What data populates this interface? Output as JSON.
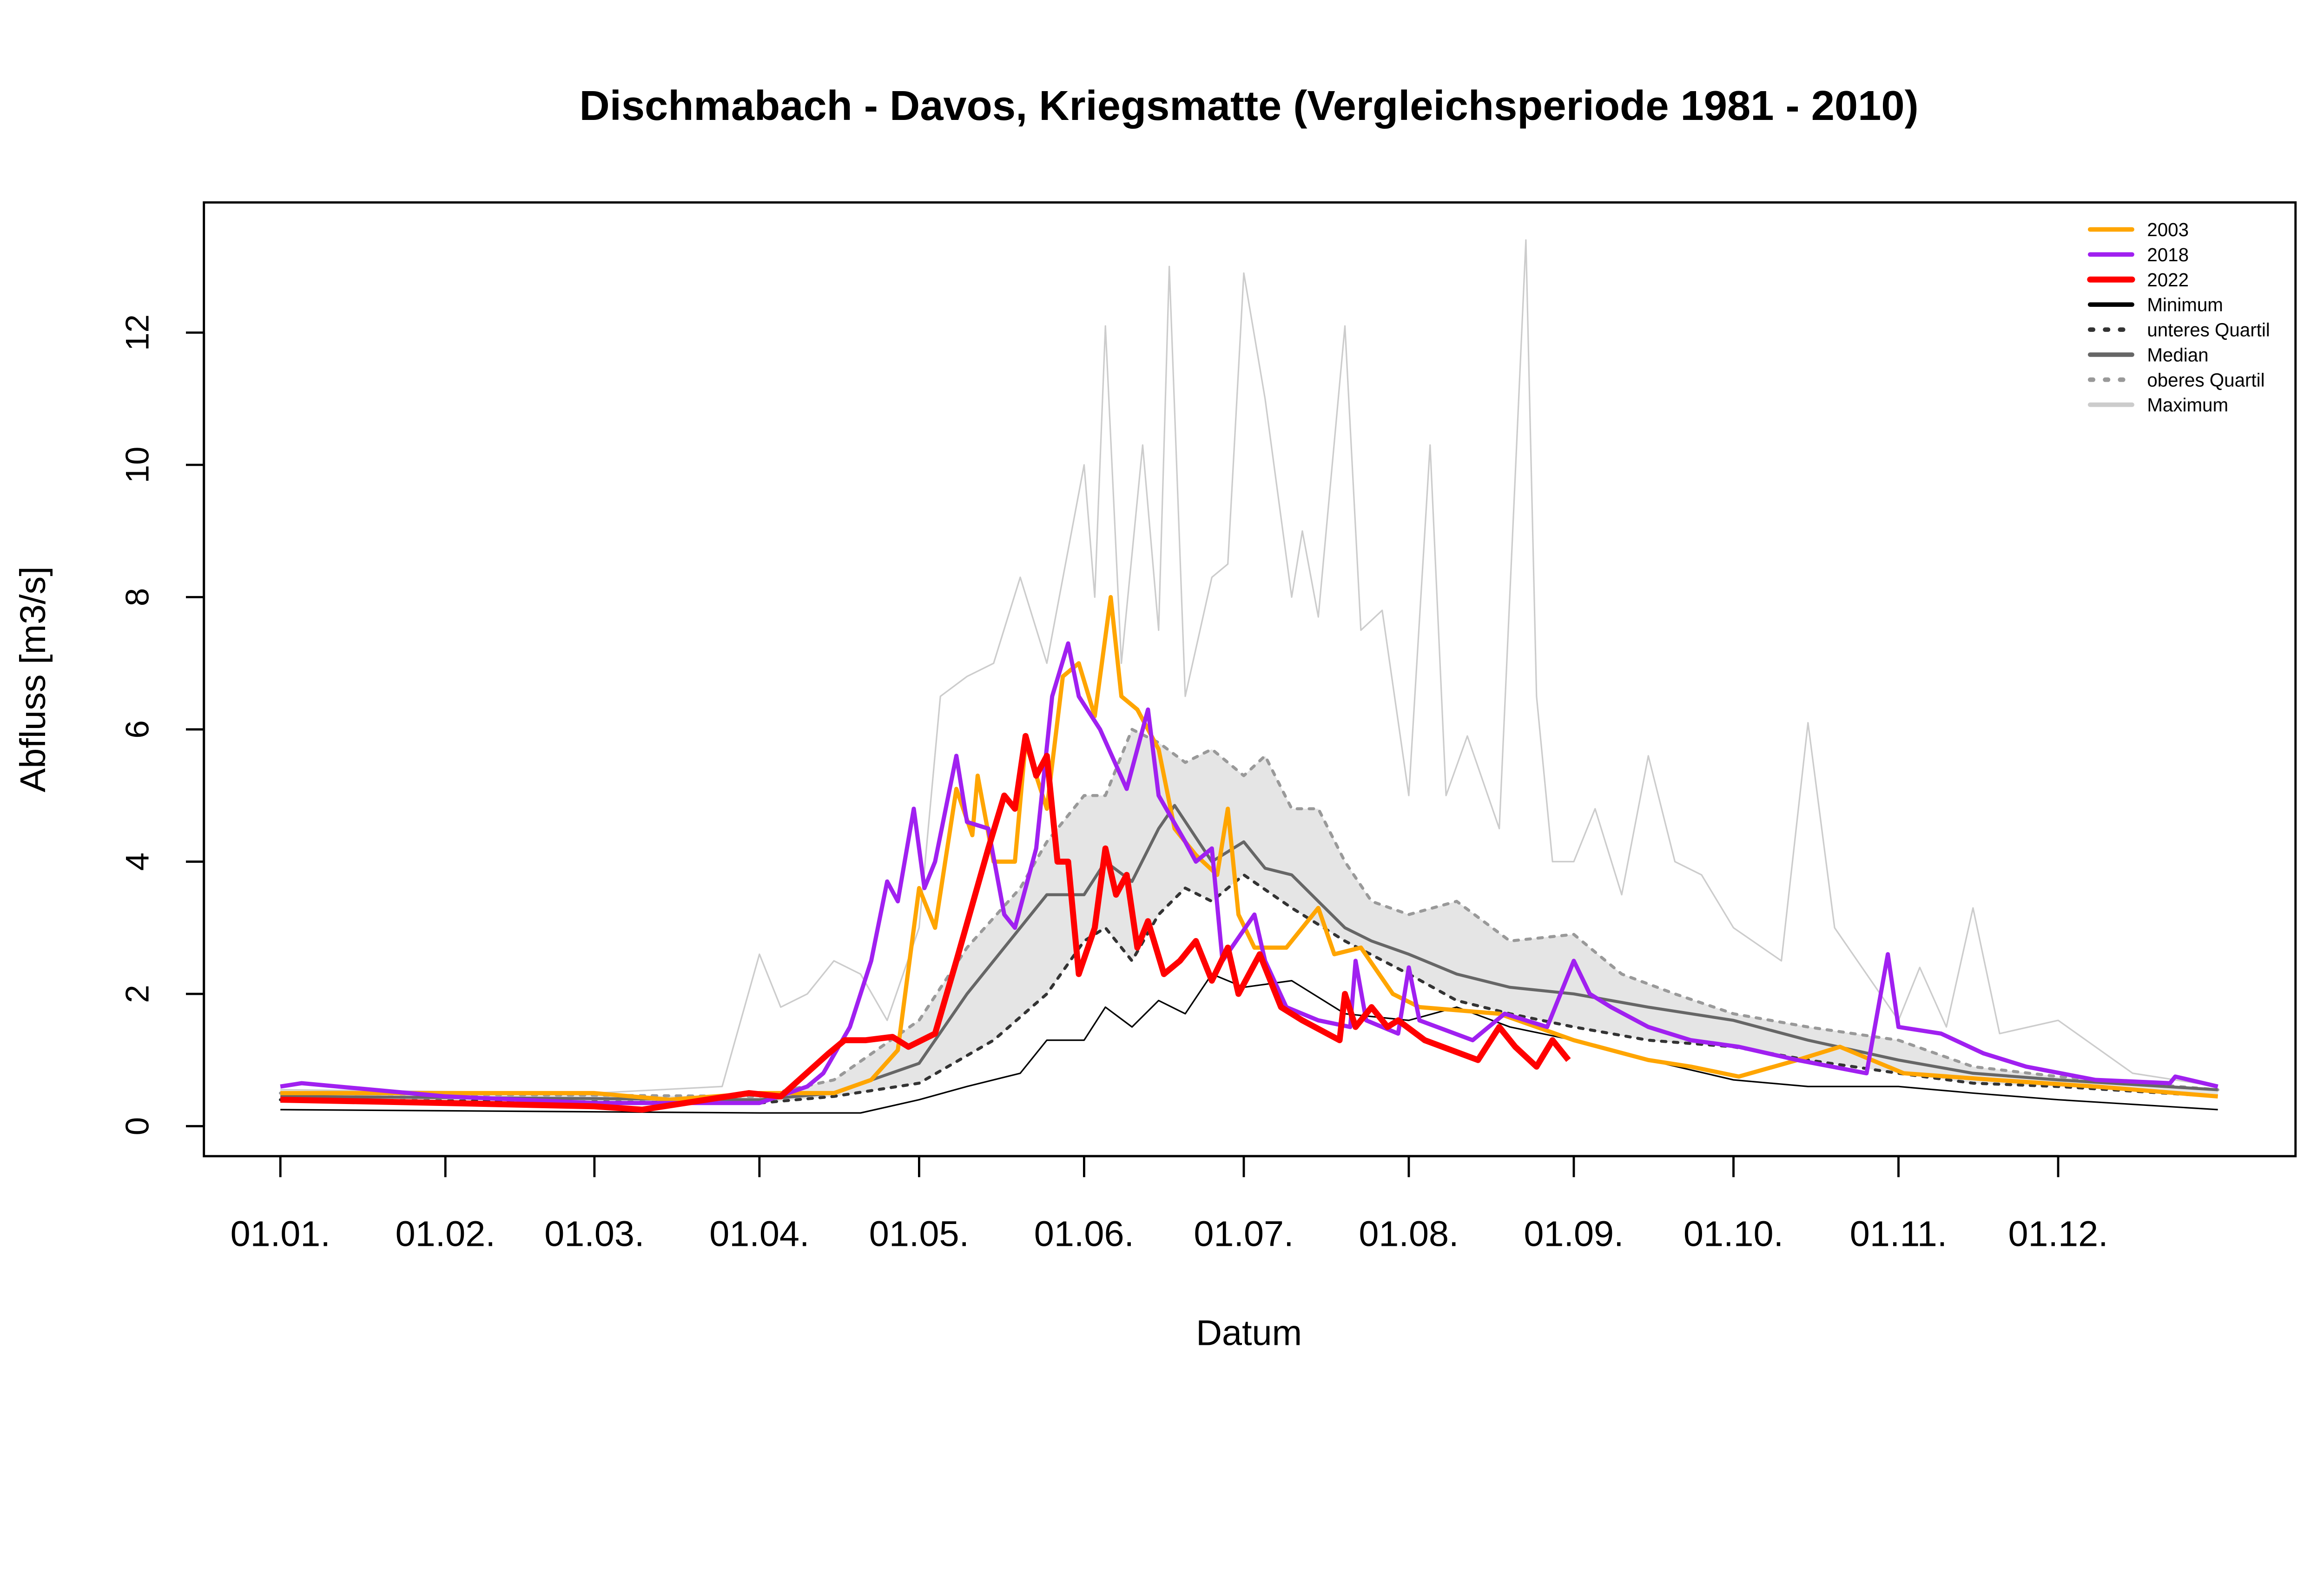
{
  "chart_data": {
    "type": "line",
    "title": "Dischmabach - Davos, Kriegsmatte (Vergleichsperiode 1981 - 2010)",
    "xlabel": "Datum",
    "ylabel": "Abfluss [m3/s]",
    "ylim": [
      0,
      13.5
    ],
    "yticks": [
      "0",
      "2",
      "4",
      "6",
      "8",
      "10",
      "12"
    ],
    "xticks": [
      "01.01.",
      "01.02.",
      "01.03.",
      "01.04.",
      "01.05.",
      "01.06.",
      "01.07.",
      "01.08.",
      "01.09.",
      "01.10.",
      "01.11.",
      "01.12."
    ],
    "grid": false,
    "legend_position": "top-right",
    "band": {
      "between": [
        "unteres Quartil",
        "oberes Quartil"
      ],
      "color": "#e5e5e5"
    },
    "series": [
      {
        "name": "Maximum",
        "color": "#cccccc",
        "dash": "solid",
        "x": [
          "01.01.",
          "01.03.",
          "25.03.",
          "01.04.",
          "05.04.",
          "10.04.",
          "15.04.",
          "20.04.",
          "25.04.",
          "01.05.",
          "05.05.",
          "10.05.",
          "15.05.",
          "20.05.",
          "25.05.",
          "01.06.",
          "03.06.",
          "05.06.",
          "08.06.",
          "12.06.",
          "15.06.",
          "17.06.",
          "20.06.",
          "25.06.",
          "28.06.",
          "01.07.",
          "05.07.",
          "10.07.",
          "12.07.",
          "15.07.",
          "20.07.",
          "23.07.",
          "27.07.",
          "01.08.",
          "05.08.",
          "08.08.",
          "12.08.",
          "18.08.",
          "23.08.",
          "25.08.",
          "28.08.",
          "01.09.",
          "05.09.",
          "10.09.",
          "15.09.",
          "20.09.",
          "25.09.",
          "01.10.",
          "10.10.",
          "15.10.",
          "20.10.",
          "01.11.",
          "05.11.",
          "10.11.",
          "15.11.",
          "20.11.",
          "01.12.",
          "15.12.",
          "31.12."
        ],
        "y": [
          0.55,
          0.5,
          0.6,
          2.6,
          1.8,
          2.0,
          2.5,
          2.3,
          1.6,
          3.0,
          6.5,
          6.8,
          7.0,
          8.3,
          7.0,
          10.0,
          8.0,
          12.1,
          7.0,
          10.3,
          7.5,
          13.0,
          6.5,
          8.3,
          8.5,
          12.9,
          11.0,
          8.0,
          9.0,
          7.7,
          12.1,
          7.5,
          7.8,
          5.0,
          10.3,
          5.0,
          5.9,
          4.5,
          13.4,
          6.5,
          4.0,
          4.0,
          4.8,
          3.5,
          5.6,
          4.0,
          3.8,
          3.0,
          2.5,
          6.1,
          3.0,
          1.6,
          2.4,
          1.5,
          3.3,
          1.4,
          1.6,
          0.8,
          0.6
        ]
      },
      {
        "name": "oberes Quartil",
        "color": "#999999",
        "dash": "dotted",
        "x": [
          "01.01.",
          "01.04.",
          "15.04.",
          "01.05.",
          "10.05.",
          "20.05.",
          "25.05.",
          "01.06.",
          "05.06.",
          "10.06.",
          "15.06.",
          "20.06.",
          "25.06.",
          "01.07.",
          "05.07.",
          "10.07.",
          "15.07.",
          "20.07.",
          "25.07.",
          "01.08.",
          "10.08.",
          "20.08.",
          "01.09.",
          "10.09.",
          "20.09.",
          "01.10.",
          "15.10.",
          "01.11.",
          "15.11.",
          "01.12.",
          "31.12."
        ],
        "y": [
          0.5,
          0.45,
          0.7,
          1.6,
          2.7,
          3.6,
          4.3,
          5.0,
          5.0,
          6.0,
          5.8,
          5.5,
          5.7,
          5.3,
          5.6,
          4.8,
          4.8,
          4.0,
          3.4,
          3.2,
          3.4,
          2.8,
          2.9,
          2.3,
          2.0,
          1.7,
          1.5,
          1.3,
          0.9,
          0.75,
          0.55
        ]
      },
      {
        "name": "unteres Quartil",
        "color": "#333333",
        "dash": "dotted",
        "x": [
          "01.01.",
          "01.04.",
          "15.04.",
          "01.05.",
          "15.05.",
          "25.05.",
          "01.06.",
          "05.06.",
          "10.06.",
          "15.06.",
          "20.06.",
          "25.06.",
          "01.07.",
          "10.07.",
          "20.07.",
          "01.08.",
          "10.08.",
          "20.08.",
          "01.09.",
          "15.09.",
          "01.10.",
          "15.10.",
          "01.11.",
          "15.11.",
          "01.12.",
          "31.12."
        ],
        "y": [
          0.4,
          0.35,
          0.45,
          0.65,
          1.3,
          2.0,
          2.8,
          3.0,
          2.5,
          3.2,
          3.6,
          3.4,
          3.8,
          3.3,
          2.8,
          2.3,
          1.9,
          1.7,
          1.5,
          1.3,
          1.2,
          1.0,
          0.8,
          0.65,
          0.6,
          0.45
        ]
      },
      {
        "name": "Median",
        "color": "#666666",
        "dash": "solid",
        "x": [
          "01.01.",
          "01.04.",
          "15.04.",
          "01.05.",
          "10.05.",
          "20.05.",
          "25.05.",
          "01.06.",
          "05.06.",
          "10.06.",
          "15.06.",
          "18.06.",
          "25.06.",
          "01.07.",
          "05.07.",
          "10.07.",
          "15.07.",
          "20.07.",
          "25.07.",
          "01.08.",
          "10.08.",
          "20.08.",
          "01.09.",
          "15.09.",
          "01.10.",
          "15.10.",
          "01.11.",
          "15.11.",
          "01.12.",
          "31.12."
        ],
        "y": [
          0.45,
          0.4,
          0.5,
          0.95,
          2.0,
          3.0,
          3.5,
          3.5,
          4.0,
          3.7,
          4.5,
          4.85,
          4.0,
          4.3,
          3.9,
          3.8,
          3.4,
          3.0,
          2.8,
          2.6,
          2.3,
          2.1,
          2.0,
          1.8,
          1.6,
          1.3,
          1.0,
          0.8,
          0.7,
          0.55
        ]
      },
      {
        "name": "Minimum",
        "color": "#000000",
        "dash": "solid",
        "x": [
          "01.01.",
          "01.04.",
          "20.04.",
          "01.05.",
          "10.05.",
          "20.05.",
          "25.05.",
          "01.06.",
          "05.06.",
          "10.06.",
          "15.06.",
          "20.06.",
          "25.06.",
          "01.07.",
          "10.07.",
          "20.07.",
          "01.08.",
          "10.08.",
          "20.08.",
          "01.09.",
          "15.09.",
          "01.10.",
          "15.10.",
          "01.11.",
          "15.11.",
          "01.12.",
          "31.12."
        ],
        "y": [
          0.25,
          0.2,
          0.2,
          0.4,
          0.6,
          0.8,
          1.3,
          1.3,
          1.8,
          1.5,
          1.9,
          1.7,
          2.3,
          2.1,
          2.2,
          1.7,
          1.6,
          1.8,
          1.5,
          1.3,
          1.0,
          0.7,
          0.6,
          0.6,
          0.5,
          0.4,
          0.25
        ]
      },
      {
        "name": "2003",
        "color": "#ffa500",
        "dash": "solid",
        "x": [
          "01.01.",
          "01.02.",
          "01.03.",
          "15.03.",
          "01.04.",
          "15.04.",
          "22.04.",
          "27.04.",
          "01.05.",
          "04.05.",
          "08.05.",
          "11.05.",
          "12.05.",
          "15.05.",
          "19.05.",
          "21.05.",
          "25.05.",
          "28.05.",
          "31.05.",
          "03.06.",
          "06.06.",
          "08.06.",
          "11.06.",
          "15.06.",
          "18.06.",
          "22.06.",
          "26.06.",
          "28.06.",
          "30.06.",
          "03.07.",
          "09.07.",
          "15.07.",
          "18.07.",
          "23.07.",
          "29.07.",
          "03.08.",
          "18.08.",
          "01.09.",
          "15.09.",
          "23.09.",
          "02.10.",
          "13.10.",
          "21.10.",
          "02.11.",
          "19.11.",
          "08.12.",
          "31.12."
        ],
        "y": [
          0.5,
          0.5,
          0.5,
          0.4,
          0.5,
          0.5,
          0.7,
          1.15,
          3.6,
          3.0,
          5.1,
          4.4,
          5.3,
          4.0,
          4.0,
          5.8,
          4.8,
          6.8,
          7.0,
          6.2,
          8.0,
          6.5,
          6.3,
          5.7,
          4.5,
          4.1,
          3.8,
          4.8,
          3.2,
          2.7,
          2.7,
          3.3,
          2.6,
          2.7,
          2.0,
          1.8,
          1.7,
          1.3,
          1.0,
          0.9,
          0.75,
          1.0,
          1.2,
          0.8,
          0.7,
          0.6,
          0.45
        ]
      },
      {
        "name": "2018",
        "color": "#a020f0",
        "dash": "solid",
        "x": [
          "01.01.",
          "05.01.",
          "01.02.",
          "01.03.",
          "01.04.",
          "10.04.",
          "13.04.",
          "18.04.",
          "22.04.",
          "25.04.",
          "27.04.",
          "30.04.",
          "02.05.",
          "04.05.",
          "08.05.",
          "10.05.",
          "14.05.",
          "17.05.",
          "19.05.",
          "23.05.",
          "26.05.",
          "29.05.",
          "31.05.",
          "04.06.",
          "09.06.",
          "13.06.",
          "15.06.",
          "20.06.",
          "22.06.",
          "25.06.",
          "27.06.",
          "03.07.",
          "05.07.",
          "09.07.",
          "15.07.",
          "21.07.",
          "22.07.",
          "24.07.",
          "30.07.",
          "01.08.",
          "03.08.",
          "13.08.",
          "19.08.",
          "27.08.",
          "01.09.",
          "04.09.",
          "08.09.",
          "15.09.",
          "23.09.",
          "02.10.",
          "13.10.",
          "26.10.",
          "30.10.",
          "01.11.",
          "09.11.",
          "17.11.",
          "25.11.",
          "08.12.",
          "22.12.",
          "23.12.",
          "31.12."
        ],
        "y": [
          0.6,
          0.65,
          0.45,
          0.35,
          0.35,
          0.6,
          0.8,
          1.5,
          2.5,
          3.7,
          3.4,
          4.8,
          3.6,
          4.0,
          5.6,
          4.6,
          4.5,
          3.2,
          3.0,
          4.2,
          6.5,
          7.3,
          6.5,
          6.0,
          5.1,
          6.3,
          5.0,
          4.3,
          4.0,
          4.2,
          2.5,
          3.2,
          2.5,
          1.8,
          1.6,
          1.5,
          2.5,
          1.6,
          1.4,
          2.4,
          1.6,
          1.3,
          1.7,
          1.5,
          2.5,
          2.0,
          1.8,
          1.5,
          1.3,
          1.2,
          1.0,
          0.8,
          2.6,
          1.5,
          1.4,
          1.1,
          0.9,
          0.7,
          0.65,
          0.75,
          0.6
        ]
      },
      {
        "name": "2022",
        "color": "#ff0000",
        "dash": "solid",
        "x": [
          "01.01.",
          "01.02.",
          "01.03.",
          "10.03.",
          "30.03.",
          "05.04.",
          "14.04.",
          "17.04.",
          "21.04.",
          "26.04.",
          "29.04.",
          "04.05.",
          "08.05.",
          "14.05.",
          "17.05.",
          "19.05.",
          "21.05.",
          "23.05.",
          "25.05.",
          "27.05.",
          "29.05.",
          "31.05.",
          "03.06.",
          "05.06.",
          "07.06.",
          "09.06.",
          "11.06.",
          "13.06.",
          "16.06.",
          "19.06.",
          "22.06.",
          "25.06.",
          "28.06.",
          "30.06.",
          "04.07.",
          "08.07.",
          "12.07.",
          "19.07.",
          "20.07.",
          "22.07.",
          "25.07.",
          "28.07.",
          "30.07.",
          "04.08.",
          "14.08.",
          "18.08.",
          "21.08.",
          "25.08.",
          "28.08.",
          "31.08."
        ],
        "y": [
          0.4,
          0.35,
          0.3,
          0.25,
          0.5,
          0.45,
          1.1,
          1.3,
          1.3,
          1.35,
          1.2,
          1.4,
          2.5,
          4.2,
          5.0,
          4.8,
          5.9,
          5.3,
          5.6,
          4.0,
          4.0,
          2.3,
          3.0,
          4.2,
          3.5,
          3.8,
          2.7,
          3.1,
          2.3,
          2.5,
          2.8,
          2.2,
          2.7,
          2.0,
          2.6,
          1.8,
          1.6,
          1.3,
          2.0,
          1.5,
          1.8,
          1.5,
          1.6,
          1.3,
          1.0,
          1.5,
          1.2,
          0.9,
          1.3,
          1.0
        ]
      }
    ]
  }
}
